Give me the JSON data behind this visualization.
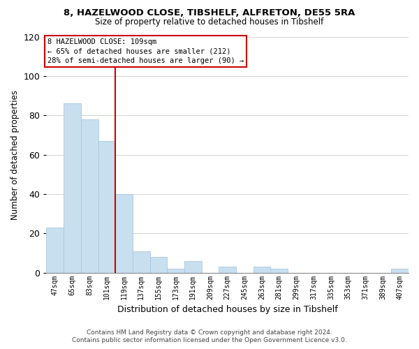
{
  "title_line1": "8, HAZELWOOD CLOSE, TIBSHELF, ALFRETON, DE55 5RA",
  "title_line2": "Size of property relative to detached houses in Tibshelf",
  "xlabel": "Distribution of detached houses by size in Tibshelf",
  "ylabel": "Number of detached properties",
  "bin_labels": [
    "47sqm",
    "65sqm",
    "83sqm",
    "101sqm",
    "119sqm",
    "137sqm",
    "155sqm",
    "173sqm",
    "191sqm",
    "209sqm",
    "227sqm",
    "245sqm",
    "263sqm",
    "281sqm",
    "299sqm",
    "317sqm",
    "335sqm",
    "353sqm",
    "371sqm",
    "389sqm",
    "407sqm"
  ],
  "bar_heights": [
    23,
    86,
    78,
    67,
    40,
    11,
    8,
    2,
    6,
    0,
    3,
    0,
    3,
    2,
    0,
    0,
    0,
    0,
    0,
    0,
    2
  ],
  "bar_color": "#c8dff0",
  "bar_edge_color": "#a8c8e0",
  "vline_color": "#cc0000",
  "annotation_text_line1": "8 HAZELWOOD CLOSE: 109sqm",
  "annotation_text_line2": "← 65% of detached houses are smaller (212)",
  "annotation_text_line3": "28% of semi-detached houses are larger (90) →",
  "box_edge_color": "#cc0000",
  "ylim": [
    0,
    120
  ],
  "yticks": [
    0,
    20,
    40,
    60,
    80,
    100,
    120
  ],
  "footer_line1": "Contains HM Land Registry data © Crown copyright and database right 2024.",
  "footer_line2": "Contains public sector information licensed under the Open Government Licence v3.0.",
  "bg_color": "#ffffff",
  "grid_color": "#cccccc"
}
